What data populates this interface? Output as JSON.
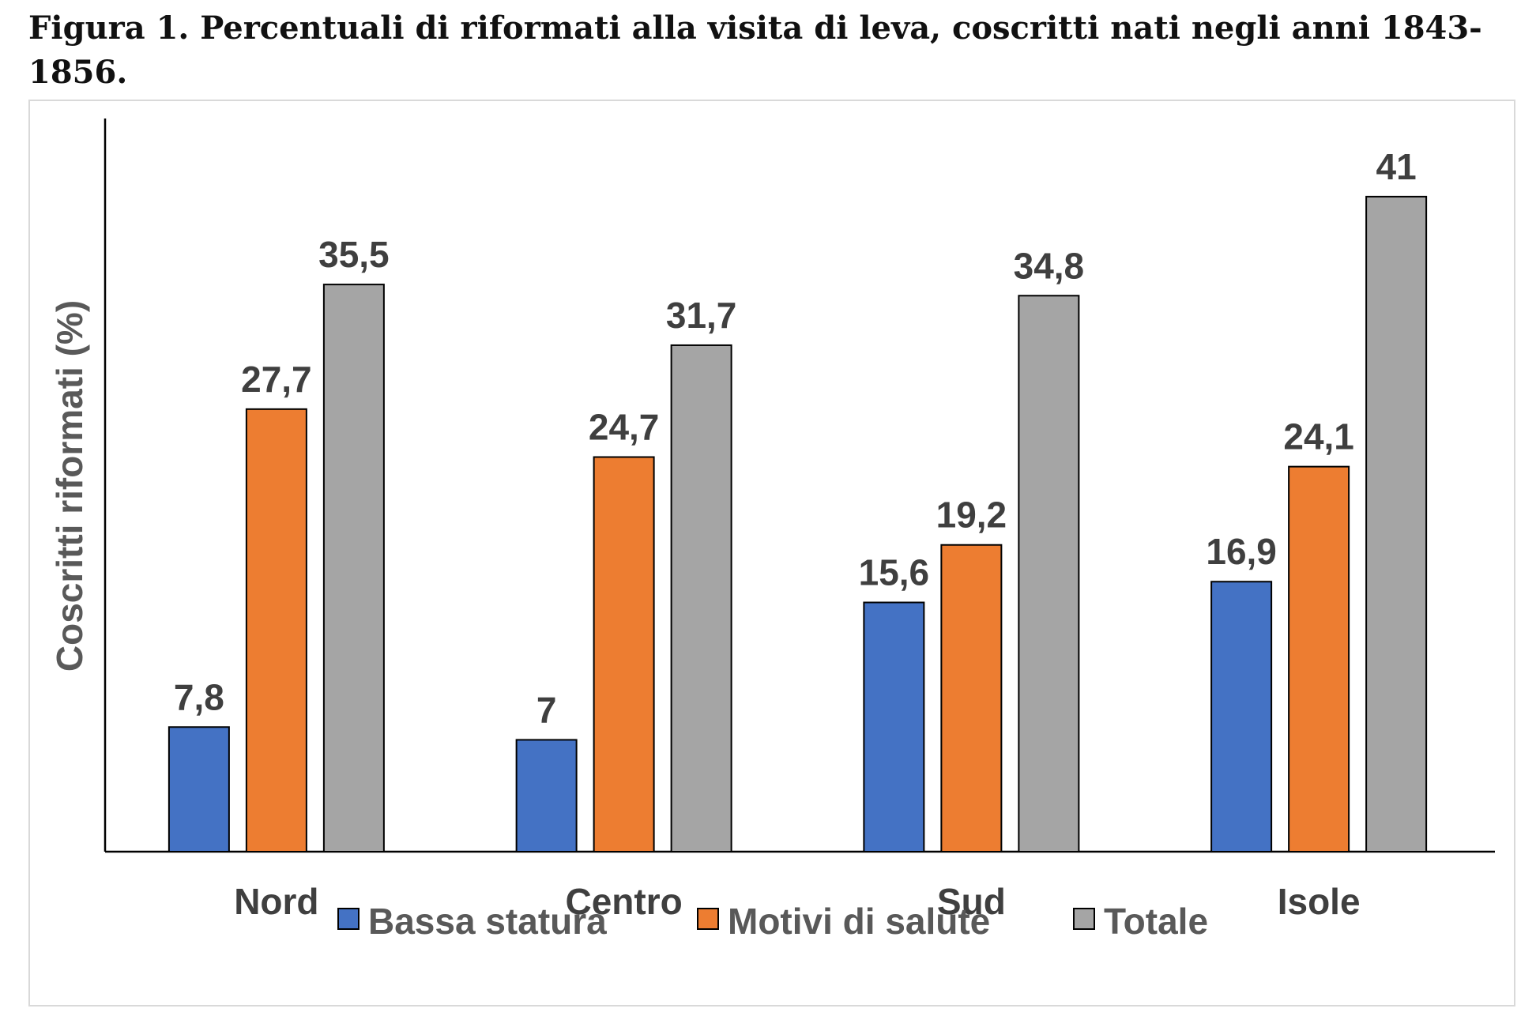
{
  "title": "Figura 1. Percentuali di riformati alla visita di leva, coscritti nati negli anni 1843-1856.",
  "chart_data": {
    "type": "bar",
    "title": "",
    "xlabel": "",
    "ylabel": "Coscritti riformati (%)",
    "ylim": [
      0,
      45
    ],
    "grid": false,
    "legend_position": "bottom",
    "categories": [
      "Nord",
      "Centro",
      "Sud",
      "Isole"
    ],
    "series": [
      {
        "name": "Bassa statura",
        "color": "#4472c4",
        "values": [
          7.8,
          7,
          15.6,
          16.9
        ],
        "labels": [
          "7,8",
          "7",
          "15,6",
          "16,9"
        ]
      },
      {
        "name": "Motivi di salute",
        "color": "#ed7d31",
        "values": [
          27.7,
          24.7,
          19.2,
          24.1
        ],
        "labels": [
          "27,7",
          "24,7",
          "19,2",
          "24,1"
        ]
      },
      {
        "name": "Totale",
        "color": "#a5a5a5",
        "values": [
          35.5,
          31.7,
          34.8,
          41
        ],
        "labels": [
          "35,5",
          "31,7",
          "34,8",
          "41"
        ]
      }
    ]
  }
}
